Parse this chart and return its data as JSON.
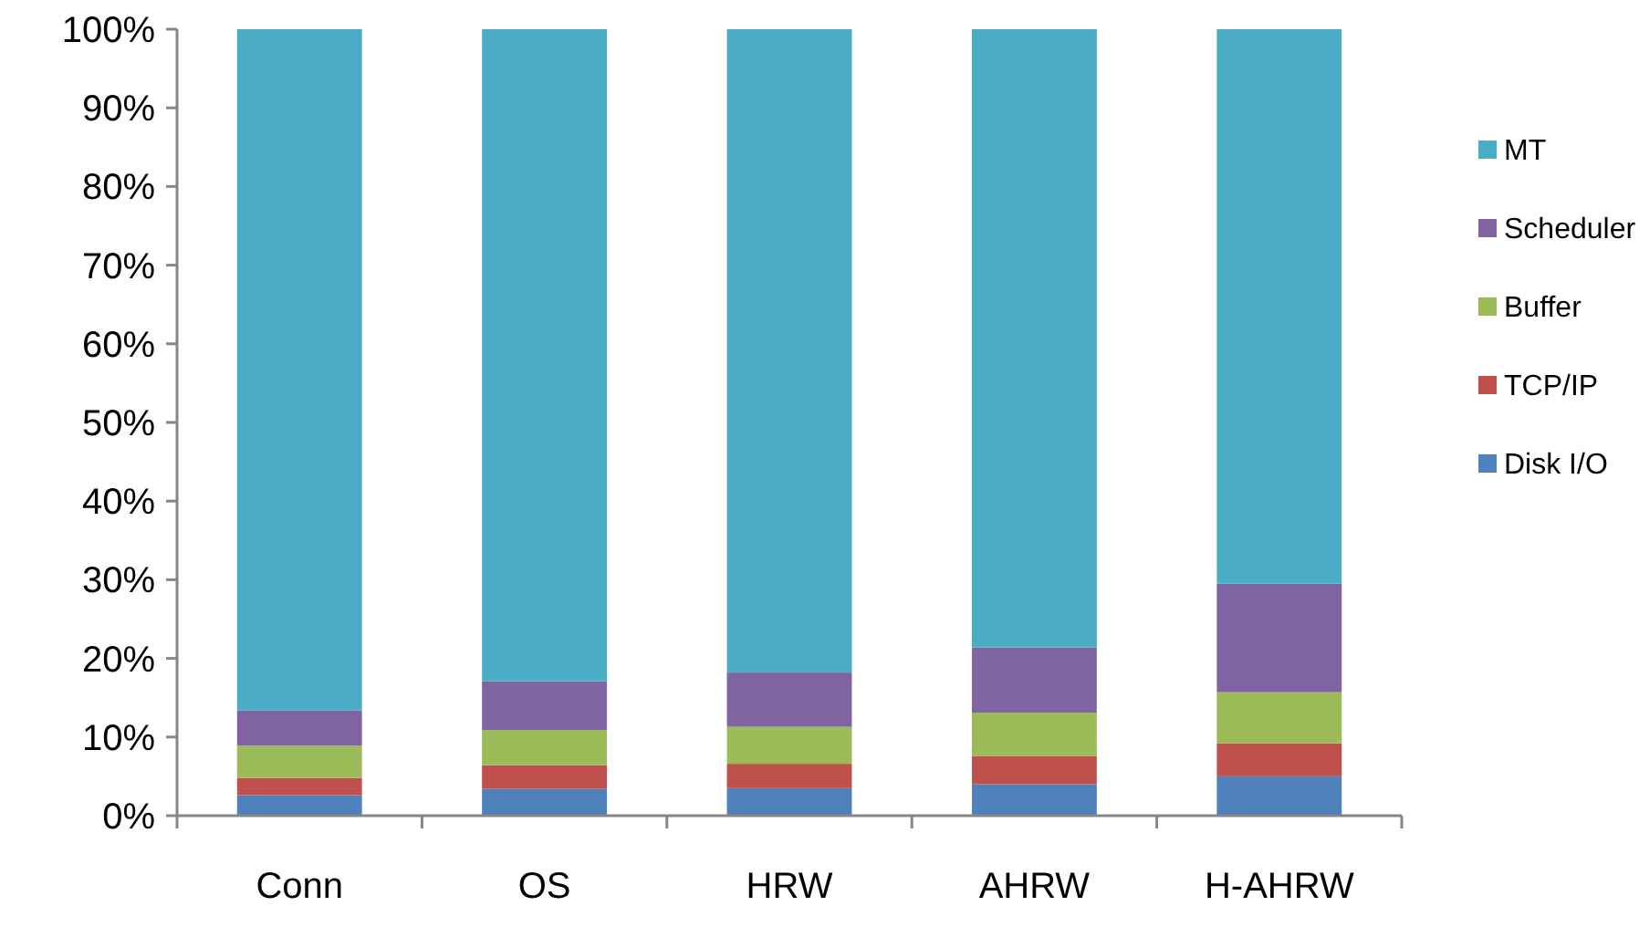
{
  "chart_data": {
    "type": "bar",
    "stacked": true,
    "categories": [
      "Conn",
      "OS",
      "HRW",
      "AHRW",
      "H-AHRW"
    ],
    "series": [
      {
        "name": "Disk I/O",
        "color": "#4f81bd",
        "values": [
          2.6,
          3.4,
          3.5,
          4.0,
          5.0
        ]
      },
      {
        "name": "TCP/IP",
        "color": "#c0504d",
        "values": [
          2.2,
          3.0,
          3.1,
          3.6,
          4.2
        ]
      },
      {
        "name": "Buffer",
        "color": "#9bbb59",
        "values": [
          4.1,
          4.5,
          4.7,
          5.5,
          6.5
        ]
      },
      {
        "name": "Scheduler",
        "color": "#8064a2",
        "values": [
          4.5,
          6.2,
          6.9,
          8.3,
          13.8
        ]
      },
      {
        "name": "MT",
        "color": "#4bacc6",
        "values": [
          86.6,
          82.9,
          81.8,
          78.6,
          70.5
        ]
      }
    ],
    "ylim": [
      0,
      100
    ],
    "yticks": [
      {
        "value": 0,
        "label": "0%"
      },
      {
        "value": 10,
        "label": "10%"
      },
      {
        "value": 20,
        "label": "20%"
      },
      {
        "value": 30,
        "label": "30%"
      },
      {
        "value": 40,
        "label": "40%"
      },
      {
        "value": 50,
        "label": "50%"
      },
      {
        "value": 60,
        "label": "60%"
      },
      {
        "value": 70,
        "label": "70%"
      },
      {
        "value": 80,
        "label": "80%"
      },
      {
        "value": 90,
        "label": "90%"
      },
      {
        "value": 100,
        "label": "100%"
      }
    ],
    "grid": false,
    "legend": "right"
  }
}
